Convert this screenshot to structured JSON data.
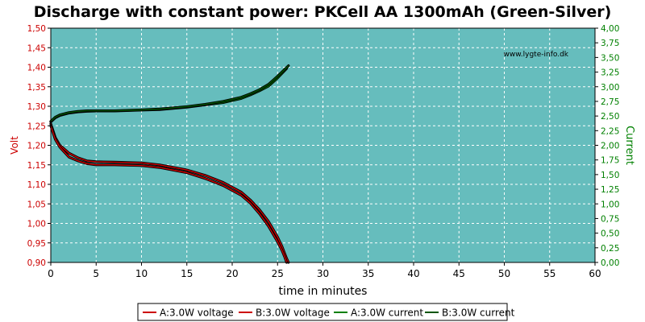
{
  "chart_data": {
    "type": "line",
    "title": "Discharge with constant power: PKCell AA 1300mAh (Green-Silver)",
    "xlabel": "time in minutes",
    "ylabel_left": "Volt",
    "ylabel_right": "Current",
    "watermark": "www.lygte-info.dk",
    "xlim": [
      0,
      60
    ],
    "ylim_left": [
      0.9,
      1.5
    ],
    "ylim_right": [
      0.0,
      4.0
    ],
    "x_ticks": [
      "0",
      "5",
      "10",
      "15",
      "20",
      "25",
      "30",
      "35",
      "40",
      "45",
      "50",
      "55",
      "60"
    ],
    "y_left_ticks": [
      "1,50",
      "1,45",
      "1,40",
      "1,35",
      "1,30",
      "1,25",
      "1,20",
      "1,15",
      "1,10",
      "1,05",
      "1,00",
      "0,95",
      "0,90"
    ],
    "y_right_ticks": [
      "4,00",
      "3,75",
      "3,50",
      "3,25",
      "3,00",
      "2,75",
      "2,50",
      "2,25",
      "2,00",
      "1,75",
      "1,50",
      "1,25",
      "1,00",
      "0,75",
      "0,50",
      "0,25",
      "0,00"
    ],
    "grid": true,
    "legend_position": "bottom",
    "plot_background": "#66bdbd",
    "series": [
      {
        "name": "A:3.0W voltage",
        "axis": "left",
        "color": "#cc0000",
        "x": [
          0,
          0.5,
          1,
          2,
          3,
          4,
          5,
          7,
          10,
          12,
          15,
          17,
          19,
          21,
          22,
          23,
          24,
          25,
          25.5,
          26,
          26.2
        ],
        "y": [
          1.255,
          1.22,
          1.2,
          1.18,
          1.168,
          1.16,
          1.158,
          1.157,
          1.155,
          1.15,
          1.137,
          1.123,
          1.105,
          1.08,
          1.06,
          1.035,
          1.005,
          0.965,
          0.94,
          0.91,
          0.9
        ]
      },
      {
        "name": "B:3.0W voltage",
        "axis": "left",
        "color": "#cc0000",
        "x": [
          0,
          0.5,
          1,
          2,
          3,
          4,
          5,
          7,
          10,
          12,
          15,
          17,
          19,
          21,
          22,
          23,
          24,
          25,
          25.5,
          25.8,
          26
        ],
        "y": [
          1.25,
          1.215,
          1.195,
          1.17,
          1.16,
          1.153,
          1.15,
          1.15,
          1.148,
          1.143,
          1.13,
          1.115,
          1.097,
          1.072,
          1.052,
          1.025,
          0.993,
          0.953,
          0.93,
          0.913,
          0.9
        ]
      },
      {
        "name": "A:3.0W current",
        "axis": "right",
        "color": "#008000",
        "x": [
          0,
          0.5,
          1,
          2,
          3,
          4,
          5,
          7,
          10,
          12,
          15,
          17,
          19,
          21,
          22,
          23,
          24,
          25,
          26
        ],
        "y": [
          2.4,
          2.47,
          2.51,
          2.55,
          2.57,
          2.58,
          2.585,
          2.585,
          2.6,
          2.61,
          2.65,
          2.69,
          2.73,
          2.8,
          2.86,
          2.93,
          3.01,
          3.15,
          3.31
        ]
      },
      {
        "name": "B:3.0W current",
        "axis": "right",
        "color": "#005500",
        "x": [
          0,
          0.5,
          1,
          2,
          3,
          4,
          5,
          7,
          10,
          12,
          15,
          17,
          19,
          21,
          22,
          23,
          24,
          25,
          26.2
        ],
        "y": [
          2.41,
          2.48,
          2.52,
          2.56,
          2.58,
          2.59,
          2.59,
          2.59,
          2.605,
          2.62,
          2.66,
          2.7,
          2.75,
          2.82,
          2.88,
          2.95,
          3.04,
          3.18,
          3.36
        ]
      }
    ]
  }
}
